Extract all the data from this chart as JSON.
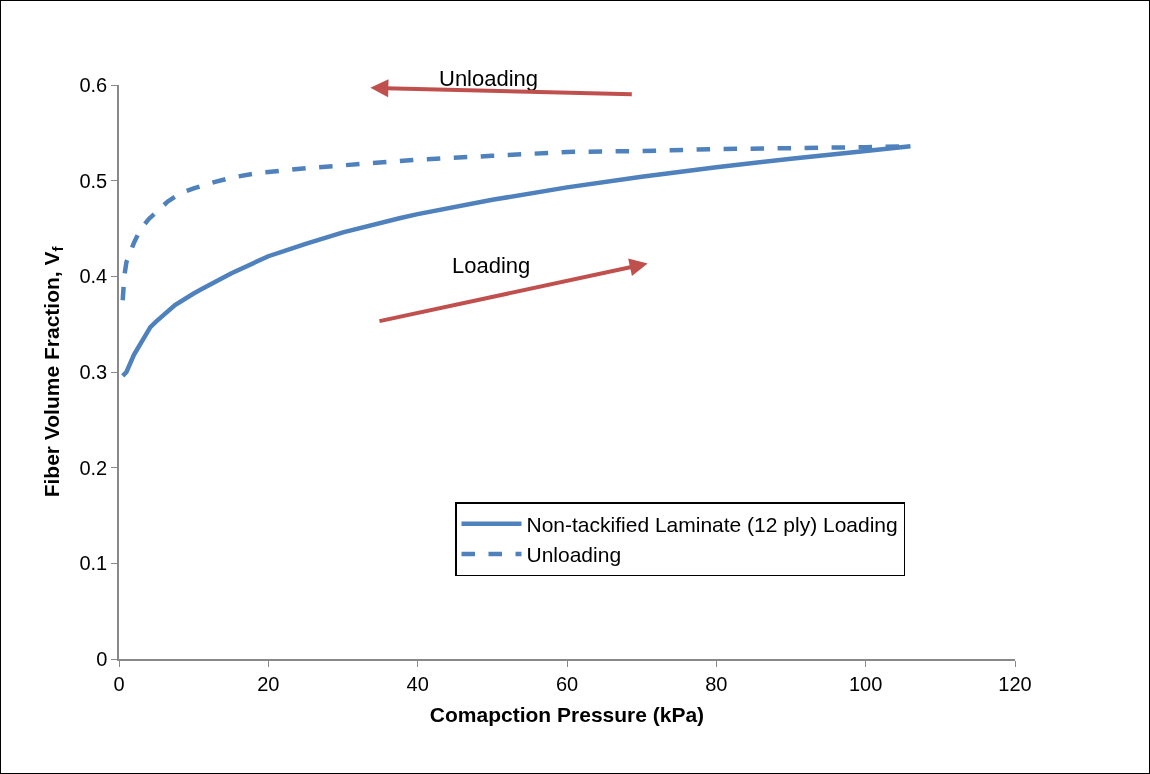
{
  "chart_data": {
    "type": "line",
    "xlabel": "Comapction Pressure (kPa)",
    "ylabel": "Fiber Volume Fraction, V$_{f}$",
    "xlim": [
      0,
      120
    ],
    "xticks": [
      0,
      20,
      40,
      60,
      80,
      100,
      120
    ],
    "ylim": [
      0,
      0.6
    ],
    "yticks": [
      0,
      0.1,
      0.2,
      0.3,
      0.4,
      0.5,
      0.6
    ],
    "grid": false,
    "legend": "bottom right",
    "marker": "none",
    "annotations": [
      "Unloading",
      "Loading"
    ],
    "series": [
      {
        "name": "Non-tackified Laminate (12 ply) Loading",
        "color": "#4f81bd",
        "line_style": "solid",
        "x": [
          0.5,
          1,
          2,
          4.2,
          5,
          7.5,
          10,
          10.9,
          15,
          20,
          25,
          30,
          37.7,
          40,
          50,
          60,
          70,
          80,
          90,
          100,
          106
        ],
        "values": [
          0.296,
          0.3,
          0.318,
          0.347,
          0.353,
          0.37,
          0.382,
          0.386,
          0.403,
          0.421,
          0.434,
          0.446,
          0.461,
          0.465,
          0.48,
          0.493,
          0.504,
          0.514,
          0.523,
          0.531,
          0.536
        ]
      },
      {
        "name": "Unloading",
        "color": "#4f81bd",
        "line_style": "dashed",
        "x": [
          0.5,
          0.7,
          1,
          2,
          2.8,
          4,
          5,
          6.5,
          8.2,
          10,
          13,
          15,
          18.5,
          20,
          25,
          30,
          40,
          50,
          60,
          70,
          80,
          90,
          100,
          106
        ],
        "values": [
          0.375,
          0.4,
          0.415,
          0.435,
          0.448,
          0.46,
          0.467,
          0.478,
          0.487,
          0.492,
          0.499,
          0.503,
          0.508,
          0.509,
          0.513,
          0.516,
          0.522,
          0.526,
          0.53,
          0.531,
          0.533,
          0.534,
          0.535,
          0.536
        ]
      }
    ]
  }
}
